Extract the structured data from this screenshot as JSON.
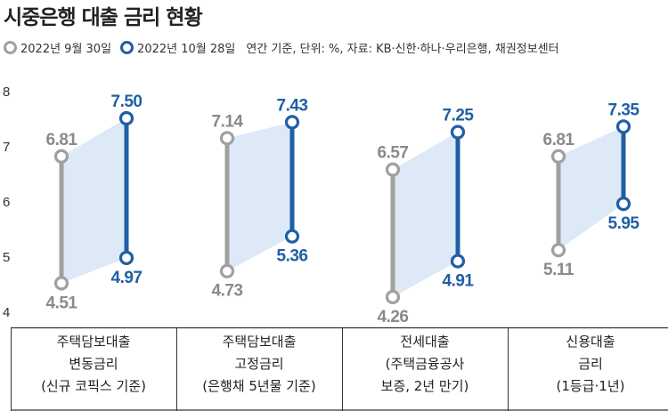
{
  "chart_data": {
    "type": "line",
    "title": "시중은행 대출 금리 현황",
    "subtitle": "연간 기준, 단위: %, 자료: KB·신한·하나·우리은행, 채권정보센터",
    "ylim": [
      4,
      8
    ],
    "yticks": [
      "8",
      "7",
      "6",
      "5",
      "4"
    ],
    "grid": false,
    "legend_position": "top-left",
    "categories": [
      [
        "주택담보대출",
        "변동금리",
        "(신규 코픽스 기준)"
      ],
      [
        "주택담보대출",
        "고정금리",
        "(은행채 5년물 기준)"
      ],
      [
        "전세대출",
        "(주택금융공사",
        "보증, 2년 만기)"
      ],
      [
        "신용대출",
        "금리",
        "(1등급·1년)"
      ]
    ],
    "series": [
      {
        "name": "2022년 9월 30일",
        "color": "#a0a0a0",
        "label_color": "#8a8a8a",
        "low": [
          4.51,
          4.73,
          4.26,
          5.11
        ],
        "high": [
          6.81,
          7.14,
          6.57,
          6.81
        ],
        "low_labels": [
          "4.51",
          "4.73",
          "4.26",
          "5.11"
        ],
        "high_labels": [
          "6.81",
          "7.14",
          "6.57",
          "6.81"
        ]
      },
      {
        "name": "2022년 10월 28일",
        "color": "#1f5fa6",
        "label_color": "#1f5fa6",
        "low": [
          4.97,
          5.36,
          4.91,
          5.95
        ],
        "high": [
          7.5,
          7.43,
          7.25,
          7.35
        ],
        "low_labels": [
          "4.97",
          "5.36",
          "4.91",
          "5.95"
        ],
        "high_labels": [
          "7.50",
          "7.43",
          "7.25",
          "7.35"
        ]
      }
    ],
    "band_color": "#dde9f6"
  }
}
